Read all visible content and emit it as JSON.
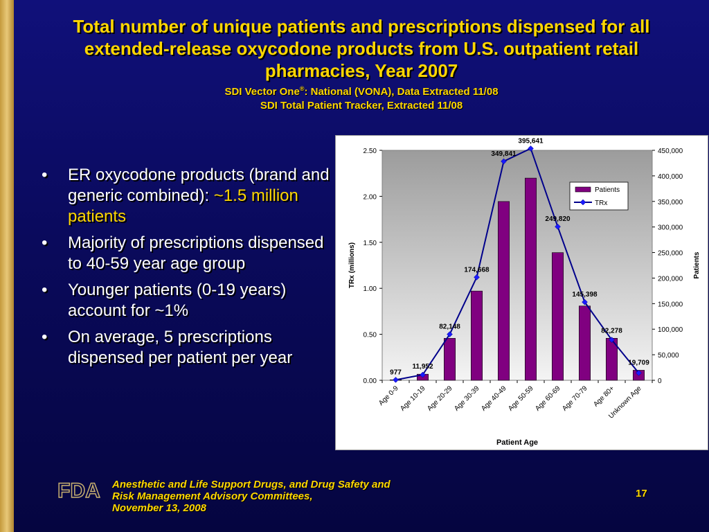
{
  "title": {
    "main": "Total number of unique patients and prescriptions dispensed for all extended-release oxycodone products from U.S. outpatient retail pharmacies, Year 2007",
    "sub1_prefix": "SDI Vector One",
    "sub1_sup": "®",
    "sub1_suffix": ": National (VONA), Data Extracted 11/08",
    "sub2": "SDI Total Patient Tracker, Extracted 11/08"
  },
  "bullets": [
    {
      "text": "ER oxycodone products (brand and generic combined): ",
      "highlight": "~1.5 million patients"
    },
    {
      "text": "Majority of prescriptions dispensed to 40-59 year age group",
      "highlight": ""
    },
    {
      "text": "Younger patients (0-19 years) account for ~1%",
      "highlight": ""
    },
    {
      "text": "On average, 5 prescriptions dispensed per patient per year",
      "highlight": ""
    }
  ],
  "bullet_glyph": "•",
  "footer": {
    "line1": "Anesthetic and Life Support Drugs, and Drug Safety and",
    "line2": "Risk Management Advisory Committees,",
    "line3": "November 13, 2008",
    "page": "17",
    "logo_text": "FDA"
  },
  "colors": {
    "bar": "#800080",
    "line": "#00008b",
    "title": "#ffd700",
    "background": "#0a0a5c",
    "accent_bar": "#c49a3c"
  },
  "chart_data": {
    "type": "bar",
    "categories": [
      "Age 0-9",
      "Age 10-19",
      "Age 20-29",
      "Age 30-39",
      "Age 40-49",
      "Age 50-59",
      "Age 60-69",
      "Age 70-79",
      "Age 80+",
      "Unknown Age"
    ],
    "series": [
      {
        "name": "Patients",
        "kind": "bar",
        "axis": "right",
        "values": [
          977,
          11952,
          82148,
          174668,
          349841,
          395641,
          249820,
          145398,
          82278,
          19709
        ],
        "labels": [
          "977",
          "11,952",
          "82,148",
          "174,668",
          "349,841",
          "395,641",
          "249,820",
          "145,398",
          "82,278",
          "19,709"
        ]
      },
      {
        "name": "TRx",
        "kind": "line",
        "axis": "left",
        "values": [
          0.005,
          0.06,
          0.5,
          1.12,
          2.38,
          2.52,
          1.67,
          0.85,
          0.44,
          0.08
        ]
      }
    ],
    "xlabel": "Patient Age",
    "ylabel": "TRx (millions)",
    "y2label": "Patients",
    "ylim": [
      0,
      2.5
    ],
    "y2lim": [
      0,
      450000
    ],
    "yticks": [
      "0.00",
      "0.50",
      "1.00",
      "1.50",
      "2.00",
      "2.50"
    ],
    "y2ticks": [
      "0",
      "50,000",
      "100,000",
      "150,000",
      "200,000",
      "250,000",
      "300,000",
      "350,000",
      "400,000",
      "450,000"
    ],
    "legend": "top-right",
    "grid": false
  }
}
